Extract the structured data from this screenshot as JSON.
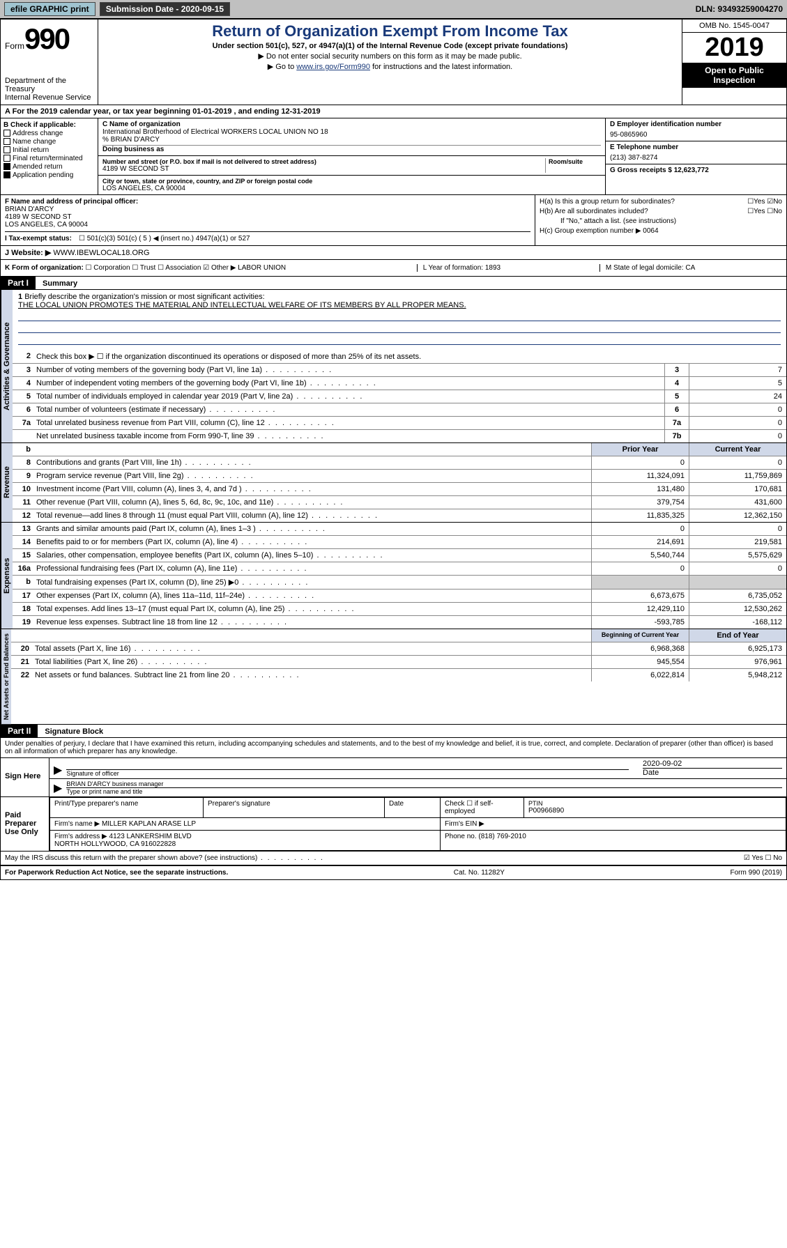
{
  "topbar": {
    "efile": "efile GRAPHIC print",
    "subdate_lbl": "Submission Date - 2020-09-15",
    "dln": "DLN: 93493259004270"
  },
  "header": {
    "form_word": "Form",
    "form_num": "990",
    "dept": "Department of the Treasury\nInternal Revenue Service",
    "title": "Return of Organization Exempt From Income Tax",
    "sub1": "Under section 501(c), 527, or 4947(a)(1) of the Internal Revenue Code (except private foundations)",
    "sub2": "▶ Do not enter social security numbers on this form as it may be made public.",
    "sub3_pre": "▶ Go to ",
    "sub3_link": "www.irs.gov/Form990",
    "sub3_post": " for instructions and the latest information.",
    "omb": "OMB No. 1545-0047",
    "year": "2019",
    "open": "Open to Public Inspection"
  },
  "row_a": "A For the 2019 calendar year, or tax year beginning 01-01-2019   , and ending 12-31-2019",
  "box_b": {
    "title": "B Check if applicable:",
    "opts": [
      "Address change",
      "Name change",
      "Initial return",
      "Final return/terminated",
      "Amended return",
      "Application pending"
    ]
  },
  "box_c": {
    "lbl": "C Name of organization",
    "name": "International Brotherhood of Electrical WORKERS LOCAL UNION NO 18",
    "care": "% BRIAN D'ARCY",
    "dba_lbl": "Doing business as",
    "addr_lbl": "Number and street (or P.O. box if mail is not delivered to street address)",
    "room_lbl": "Room/suite",
    "addr": "4189 W SECOND ST",
    "city_lbl": "City or town, state or province, country, and ZIP or foreign postal code",
    "city": "LOS ANGELES, CA  90004"
  },
  "box_d": {
    "lbl": "D Employer identification number",
    "val": "95-0865960"
  },
  "box_e": {
    "lbl": "E Telephone number",
    "val": "(213) 387-8274"
  },
  "box_g": {
    "lbl": "G Gross receipts $ 12,623,772"
  },
  "box_f": {
    "lbl": "F Name and address of principal officer:",
    "name": "BRIAN D'ARCY",
    "addr1": "4189 W SECOND ST",
    "addr2": "LOS ANGELES, CA  90004"
  },
  "box_h": {
    "a": "H(a)  Is this a group return for subordinates?",
    "b": "H(b)  Are all subordinates included?",
    "b2": "If \"No,\" attach a list. (see instructions)",
    "c": "H(c)  Group exemption number ▶  0064"
  },
  "row_i": {
    "lbl": "I  Tax-exempt status:",
    "opts": "501(c)(3)      501(c) ( 5 ) ◀ (insert no.)      4947(a)(1) or      527"
  },
  "row_j": {
    "lbl": "J  Website: ▶",
    "val": "WWW.IBEWLOCAL18.ORG"
  },
  "row_k": {
    "lbl": "K Form of organization:",
    "other": "Other ▶ LABOR UNION",
    "l": "L Year of formation: 1893",
    "m": "M State of legal domicile: CA"
  },
  "part1": {
    "num": "Part I",
    "title": "Summary"
  },
  "q1": {
    "num": "1",
    "text": "Briefly describe the organization's mission or most significant activities:",
    "ans": "THE LOCAL UNION PROMOTES THE MATERIAL AND INTELLECTUAL WELFARE OF ITS MEMBERS BY ALL PROPER MEANS."
  },
  "q2": {
    "num": "2",
    "text": "Check this box ▶ ☐ if the organization discontinued its operations or disposed of more than 25% of its net assets."
  },
  "gov_lines": [
    {
      "n": "3",
      "t": "Number of voting members of the governing body (Part VI, line 1a)",
      "b": "3",
      "v": "7"
    },
    {
      "n": "4",
      "t": "Number of independent voting members of the governing body (Part VI, line 1b)",
      "b": "4",
      "v": "5"
    },
    {
      "n": "5",
      "t": "Total number of individuals employed in calendar year 2019 (Part V, line 2a)",
      "b": "5",
      "v": "24"
    },
    {
      "n": "6",
      "t": "Total number of volunteers (estimate if necessary)",
      "b": "6",
      "v": "0"
    },
    {
      "n": "7a",
      "t": "Total unrelated business revenue from Part VIII, column (C), line 12",
      "b": "7a",
      "v": "0"
    },
    {
      "n": "",
      "t": "Net unrelated business taxable income from Form 990-T, line 39",
      "b": "7b",
      "v": "0"
    }
  ],
  "col_hdrs": {
    "n": "b",
    "prior": "Prior Year",
    "curr": "Current Year"
  },
  "rev_lines": [
    {
      "n": "8",
      "t": "Contributions and grants (Part VIII, line 1h)",
      "p": "0",
      "c": "0"
    },
    {
      "n": "9",
      "t": "Program service revenue (Part VIII, line 2g)",
      "p": "11,324,091",
      "c": "11,759,869"
    },
    {
      "n": "10",
      "t": "Investment income (Part VIII, column (A), lines 3, 4, and 7d )",
      "p": "131,480",
      "c": "170,681"
    },
    {
      "n": "11",
      "t": "Other revenue (Part VIII, column (A), lines 5, 6d, 8c, 9c, 10c, and 11e)",
      "p": "379,754",
      "c": "431,600"
    },
    {
      "n": "12",
      "t": "Total revenue—add lines 8 through 11 (must equal Part VIII, column (A), line 12)",
      "p": "11,835,325",
      "c": "12,362,150"
    }
  ],
  "exp_lines": [
    {
      "n": "13",
      "t": "Grants and similar amounts paid (Part IX, column (A), lines 1–3 )",
      "p": "0",
      "c": "0"
    },
    {
      "n": "14",
      "t": "Benefits paid to or for members (Part IX, column (A), line 4)",
      "p": "214,691",
      "c": "219,581"
    },
    {
      "n": "15",
      "t": "Salaries, other compensation, employee benefits (Part IX, column (A), lines 5–10)",
      "p": "5,540,744",
      "c": "5,575,629"
    },
    {
      "n": "16a",
      "t": "Professional fundraising fees (Part IX, column (A), line 11e)",
      "p": "0",
      "c": "0"
    },
    {
      "n": "b",
      "t": "Total fundraising expenses (Part IX, column (D), line 25) ▶0",
      "p": "",
      "c": "",
      "grey": true
    },
    {
      "n": "17",
      "t": "Other expenses (Part IX, column (A), lines 11a–11d, 11f–24e)",
      "p": "6,673,675",
      "c": "6,735,052"
    },
    {
      "n": "18",
      "t": "Total expenses. Add lines 13–17 (must equal Part IX, column (A), line 25)",
      "p": "12,429,110",
      "c": "12,530,262"
    },
    {
      "n": "19",
      "t": "Revenue less expenses. Subtract line 18 from line 12",
      "p": "-593,785",
      "c": "-168,112"
    }
  ],
  "bal_hdr": {
    "p": "Beginning of Current Year",
    "c": "End of Year"
  },
  "bal_lines": [
    {
      "n": "20",
      "t": "Total assets (Part X, line 16)",
      "p": "6,968,368",
      "c": "6,925,173"
    },
    {
      "n": "21",
      "t": "Total liabilities (Part X, line 26)",
      "p": "945,554",
      "c": "976,961"
    },
    {
      "n": "22",
      "t": "Net assets or fund balances. Subtract line 21 from line 20",
      "p": "6,022,814",
      "c": "5,948,212"
    }
  ],
  "part2": {
    "num": "Part II",
    "title": "Signature Block"
  },
  "perjury": "Under penalties of perjury, I declare that I have examined this return, including accompanying schedules and statements, and to the best of my knowledge and belief, it is true, correct, and complete. Declaration of preparer (other than officer) is based on all information of which preparer has any knowledge.",
  "sign": {
    "here": "Sign Here",
    "sig_lbl": "Signature of officer",
    "date": "2020-09-02",
    "date_lbl": "Date",
    "name": "BRIAN D'ARCY business manager",
    "name_lbl": "Type or print name and title"
  },
  "paid": {
    "here": "Paid Preparer Use Only",
    "h1": "Print/Type preparer's name",
    "h2": "Preparer's signature",
    "h3": "Date",
    "h4": "Check ☐ if self-employed",
    "h5_lbl": "PTIN",
    "h5": "P00966890",
    "firm_lbl": "Firm's name    ▶",
    "firm": "MILLER KAPLAN ARASE LLP",
    "ein_lbl": "Firm's EIN ▶",
    "addr_lbl": "Firm's address ▶",
    "addr": "4123 LANKERSHIM BLVD\nNORTH HOLLYWOOD, CA  916022828",
    "phone_lbl": "Phone no. (818) 769-2010"
  },
  "discuss": "May the IRS discuss this return with the preparer shown above? (see instructions)",
  "footer": {
    "left": "For Paperwork Reduction Act Notice, see the separate instructions.",
    "mid": "Cat. No. 11282Y",
    "right": "Form 990 (2019)"
  },
  "tabs": {
    "gov": "Activities & Governance",
    "rev": "Revenue",
    "exp": "Expenses",
    "bal": "Net Assets or Fund Balances"
  }
}
